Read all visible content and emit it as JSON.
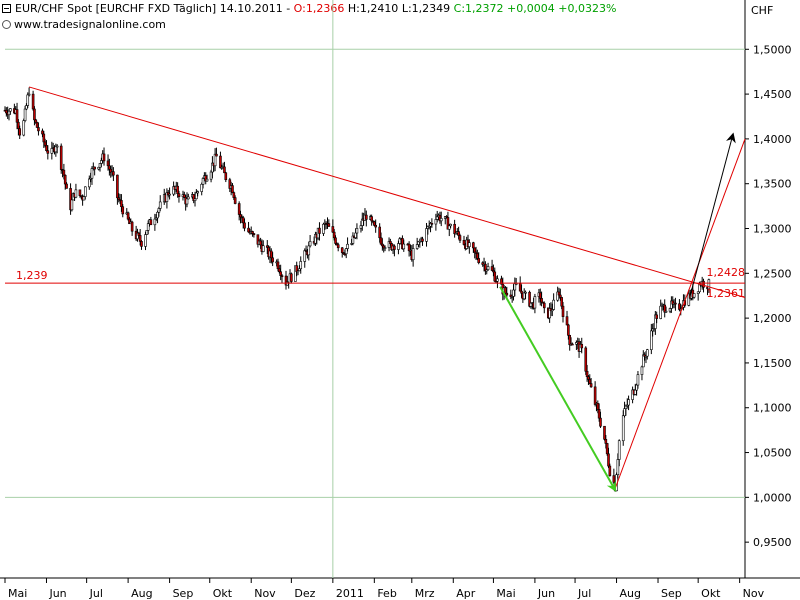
{
  "header": {
    "instrument": "EUR/CHF Spot [EURCHF FXD  Täglich]",
    "date": "14.10.2011",
    "open_text": "O:1,2366",
    "high_text": "H:1,2410",
    "low_text": "L:1,2349",
    "close_text": "C:1,2372",
    "change_text": "+0,0004",
    "change_pct_text": "+0,0323%",
    "website": "www.tradesignalonline.com",
    "currency": "CHF",
    "colors": {
      "negative": "#e00000",
      "positive": "#00a000"
    }
  },
  "chart_data": {
    "type": "candlestick",
    "title": "EUR/CHF Spot [EURCHF FXD  Täglich]",
    "yunit": "CHF",
    "ylim": [
      0.91,
      1.555
    ],
    "xlim_days": [
      0,
      553
    ],
    "grid": false,
    "y_ticks": [
      "0,9500",
      "1,0000",
      "1,0500",
      "1,1000",
      "1,1500",
      "1,2000",
      "1,2500",
      "1,3000",
      "1,3500",
      "1,4000",
      "1,4500",
      "1,5000"
    ],
    "y_tick_values": [
      0.95,
      1.0,
      1.05,
      1.1,
      1.15,
      1.2,
      1.25,
      1.3,
      1.35,
      1.4,
      1.45,
      1.5
    ],
    "x_ticks": [
      {
        "label": "Mai",
        "day": 0
      },
      {
        "label": "Jun",
        "day": 31
      },
      {
        "label": "Jul",
        "day": 61
      },
      {
        "label": "Aug",
        "day": 92
      },
      {
        "label": "Sep",
        "day": 123
      },
      {
        "label": "Okt",
        "day": 153
      },
      {
        "label": "Nov",
        "day": 184
      },
      {
        "label": "Dez",
        "day": 214
      },
      {
        "label": "2011",
        "day": 245
      },
      {
        "label": "Feb",
        "day": 276
      },
      {
        "label": "Mrz",
        "day": 304
      },
      {
        "label": "Apr",
        "day": 335
      },
      {
        "label": "Mai",
        "day": 365
      },
      {
        "label": "Jun",
        "day": 396
      },
      {
        "label": "Jul",
        "day": 426
      },
      {
        "label": "Aug",
        "day": 457
      },
      {
        "label": "Sep",
        "day": 488
      },
      {
        "label": "Okt",
        "day": 518
      },
      {
        "label": "Nov",
        "day": 549
      }
    ],
    "price_path": [
      [
        0,
        1.432
      ],
      [
        8,
        1.432
      ],
      [
        12,
        1.4
      ],
      [
        18,
        1.455
      ],
      [
        22,
        1.42
      ],
      [
        28,
        1.4
      ],
      [
        34,
        1.38
      ],
      [
        38,
        1.395
      ],
      [
        44,
        1.36
      ],
      [
        48,
        1.32
      ],
      [
        52,
        1.34
      ],
      [
        58,
        1.335
      ],
      [
        63,
        1.36
      ],
      [
        68,
        1.37
      ],
      [
        74,
        1.38
      ],
      [
        80,
        1.36
      ],
      [
        84,
        1.335
      ],
      [
        90,
        1.315
      ],
      [
        96,
        1.295
      ],
      [
        102,
        1.285
      ],
      [
        106,
        1.3
      ],
      [
        112,
        1.315
      ],
      [
        118,
        1.33
      ],
      [
        124,
        1.345
      ],
      [
        130,
        1.34
      ],
      [
        136,
        1.33
      ],
      [
        142,
        1.335
      ],
      [
        148,
        1.355
      ],
      [
        153,
        1.365
      ],
      [
        158,
        1.38
      ],
      [
        164,
        1.36
      ],
      [
        170,
        1.345
      ],
      [
        174,
        1.32
      ],
      [
        180,
        1.3
      ],
      [
        186,
        1.29
      ],
      [
        192,
        1.28
      ],
      [
        198,
        1.27
      ],
      [
        204,
        1.26
      ],
      [
        210,
        1.24
      ],
      [
        216,
        1.25
      ],
      [
        222,
        1.265
      ],
      [
        228,
        1.28
      ],
      [
        234,
        1.295
      ],
      [
        240,
        1.305
      ],
      [
        246,
        1.29
      ],
      [
        252,
        1.275
      ],
      [
        258,
        1.28
      ],
      [
        264,
        1.3
      ],
      [
        270,
        1.315
      ],
      [
        276,
        1.3
      ],
      [
        282,
        1.285
      ],
      [
        288,
        1.28
      ],
      [
        294,
        1.285
      ],
      [
        300,
        1.28
      ],
      [
        304,
        1.27
      ],
      [
        310,
        1.285
      ],
      [
        316,
        1.3
      ],
      [
        322,
        1.315
      ],
      [
        328,
        1.31
      ],
      [
        334,
        1.3
      ],
      [
        340,
        1.29
      ],
      [
        346,
        1.28
      ],
      [
        352,
        1.27
      ],
      [
        358,
        1.26
      ],
      [
        365,
        1.25
      ],
      [
        370,
        1.235
      ],
      [
        376,
        1.225
      ],
      [
        382,
        1.235
      ],
      [
        388,
        1.225
      ],
      [
        394,
        1.215
      ],
      [
        400,
        1.225
      ],
      [
        404,
        1.2
      ],
      [
        410,
        1.215
      ],
      [
        414,
        1.23
      ],
      [
        418,
        1.2
      ],
      [
        422,
        1.175
      ],
      [
        428,
        1.17
      ],
      [
        432,
        1.16
      ],
      [
        436,
        1.13
      ],
      [
        440,
        1.11
      ],
      [
        444,
        1.09
      ],
      [
        448,
        1.065
      ],
      [
        452,
        1.03
      ],
      [
        456,
        1.012
      ],
      [
        460,
        1.08
      ],
      [
        464,
        1.1
      ],
      [
        470,
        1.12
      ],
      [
        476,
        1.15
      ],
      [
        480,
        1.165
      ],
      [
        486,
        1.2
      ],
      [
        490,
        1.21
      ],
      [
        496,
        1.215
      ],
      [
        502,
        1.21
      ],
      [
        508,
        1.22
      ],
      [
        512,
        1.225
      ],
      [
        516,
        1.23
      ],
      [
        520,
        1.24
      ],
      [
        526,
        1.2372
      ]
    ],
    "lines": {
      "downtrend_red": [
        [
          18,
          1.458
        ],
        [
          553,
          1.223
        ]
      ],
      "uptrend_red": [
        [
          456,
          1.01
        ],
        [
          553,
          1.4
        ]
      ],
      "support_horizontal": 1.239,
      "support_label": "1,239",
      "green_arrow": [
        [
          370,
          1.235
        ],
        [
          456,
          1.008
        ]
      ],
      "black_arrow": [
        [
          512,
          1.225
        ],
        [
          544,
          1.405
        ]
      ]
    },
    "annotations": [
      {
        "text": "1,2428",
        "x": 522,
        "y": 1.2428,
        "color": "#e00000"
      },
      {
        "text": "1,2361",
        "x": 522,
        "y": 1.2361,
        "color": "#e00000"
      }
    ]
  }
}
